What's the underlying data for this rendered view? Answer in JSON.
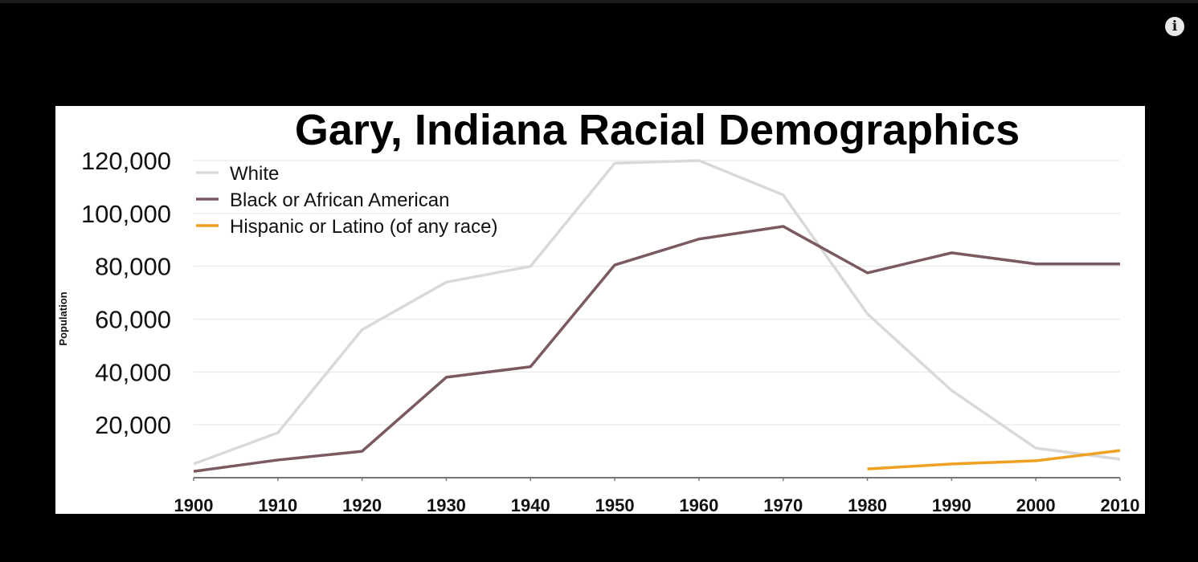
{
  "player": {
    "info_icon": "info-icon"
  },
  "chart_data": {
    "type": "line",
    "title": "Gary, Indiana Racial Demographics",
    "xlabel": "",
    "ylabel": "Population",
    "x": [
      1900,
      1910,
      1920,
      1930,
      1940,
      1950,
      1960,
      1970,
      1980,
      1990,
      2000,
      2010
    ],
    "x_tick_labels": [
      "1900",
      "1910",
      "1920",
      "1930",
      "1940",
      "1950",
      "1960",
      "1970",
      "1980",
      "1990",
      "2000",
      "2010"
    ],
    "y_ticks": [
      20000,
      40000,
      60000,
      80000,
      100000,
      120000
    ],
    "y_tick_labels": [
      "20,000",
      "40,000",
      "60,000",
      "80,000",
      "100,000",
      "120,000"
    ],
    "ylim": [
      0,
      120000
    ],
    "grid": "horizontal",
    "legend": "top-left",
    "series": [
      {
        "name": "White",
        "color": "#d9d9d9",
        "values": [
          5200,
          17000,
          56000,
          74000,
          80000,
          119000,
          120000,
          107000,
          62000,
          33000,
          11200,
          7000
        ]
      },
      {
        "name": "Black or African American",
        "color": "#7a5a5e",
        "values": [
          2400,
          6700,
          10000,
          38000,
          42000,
          80500,
          90300,
          95100,
          77500,
          85100,
          80900,
          80900
        ]
      },
      {
        "name": "Hispanic or Latino (of any race)",
        "color": "#f0a020",
        "values": [
          null,
          null,
          null,
          null,
          null,
          null,
          null,
          null,
          3300,
          5200,
          6400,
          10300
        ]
      }
    ]
  }
}
